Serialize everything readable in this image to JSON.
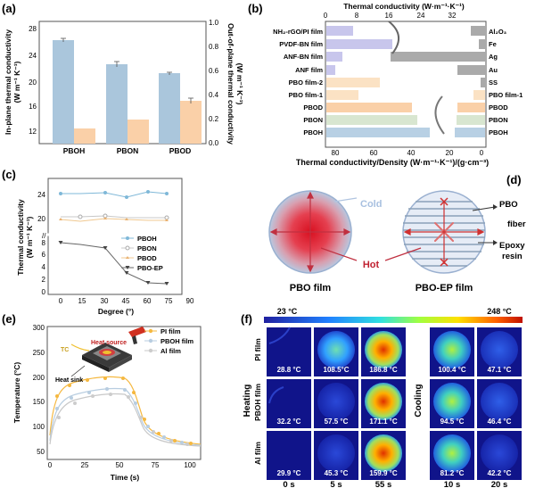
{
  "panels": {
    "a": "(a)",
    "b": "(b)",
    "c": "(c)",
    "d": "(d)",
    "e": "(e)",
    "f": "(f)"
  },
  "a": {
    "ylabel_left": "In-plane thermal conductivity",
    "ylabel_left_unit": "(W m⁻¹ K⁻¹)",
    "ylabel_right": "Out-of-plane thermal conductivity",
    "ylabel_right_unit": "(W m⁻¹ K⁻¹)",
    "yticks_left": [
      "28",
      "24",
      "20",
      "16",
      "12"
    ],
    "yticks_right": [
      "1.0",
      "0.8",
      "0.6",
      "0.4",
      "0.2",
      "0.0"
    ],
    "categories": [
      "PBOH",
      "PBON",
      "PBOD"
    ]
  },
  "b": {
    "top_title": "Thermal conductivity (W·m⁻¹·K⁻¹)",
    "top_ticks": [
      "0",
      "8",
      "16",
      "24",
      "32"
    ],
    "bottom_title": "Thermal conductivity/Density (W·m⁻¹·K⁻¹)/(g·cm⁻³)",
    "bottom_ticks": [
      "80",
      "60",
      "40",
      "20",
      "0"
    ],
    "left_labels": [
      "NH₂-rGO/PI film",
      "PVDF-BN film",
      "ANF-BN film",
      "ANF film",
      "PBO film-2",
      "PBO film-1",
      "PBOD",
      "PBON",
      "PBOH"
    ],
    "right_labels": [
      "Al₂O₃",
      "Fe",
      "Ag",
      "Au",
      "SS",
      "PBO film-1",
      "PBOD",
      "PBON",
      "PBOH"
    ]
  },
  "c": {
    "ylabel": "Thermal conductivity",
    "ylabel_unit": "(W m⁻¹ K⁻¹)",
    "xlabel": "Degree (°)",
    "xticks": [
      "0",
      "15",
      "30",
      "45",
      "60",
      "75",
      "90"
    ],
    "yticks_top": [
      "24",
      "20"
    ],
    "yticks_bottom": [
      "8",
      "6",
      "4",
      "2",
      "0"
    ],
    "legend": [
      "PBOH",
      "PBON",
      "PBOD",
      "PBO-EP"
    ]
  },
  "d": {
    "cold": "Cold",
    "hot": "Hot",
    "pbo_fiber": "PBO fiber",
    "epoxy_resin": "Epoxy resin",
    "pbo_film": "PBO film",
    "pbo_ep_film": "PBO-EP film"
  },
  "e": {
    "ylabel": "Temperature (°C)",
    "xlabel": "Time (s)",
    "yticks": [
      "300",
      "250",
      "200",
      "150",
      "100",
      "50"
    ],
    "xticks": [
      "0",
      "25",
      "50",
      "75",
      "100"
    ],
    "legend": [
      "PI film",
      "PBOH film",
      "Al film"
    ],
    "heat_source": "Heat source",
    "tc": "TC",
    "heat_sink": "Heat sink"
  },
  "f": {
    "scale_min": "23 °C",
    "scale_max": "248 °C",
    "rows": [
      "PI film",
      "PBOH film",
      "Al film"
    ],
    "heating": "Heating",
    "cooling": "Cooling",
    "times_heat": [
      "0 s",
      "5 s",
      "55 s"
    ],
    "times_cool": [
      "10 s",
      "20 s"
    ],
    "temps": [
      [
        "28.8 °C",
        "108.5°C",
        "186.8 °C",
        "100.4 °C",
        "47.1 °C"
      ],
      [
        "32.2 °C",
        "57.5 °C",
        "171.1 °C",
        "94.5 °C",
        "46.4 °C"
      ],
      [
        "29.9 °C",
        "45.3 °C",
        "159.9 °C",
        "81.2 °C",
        "42.2 °C"
      ]
    ]
  }
}
